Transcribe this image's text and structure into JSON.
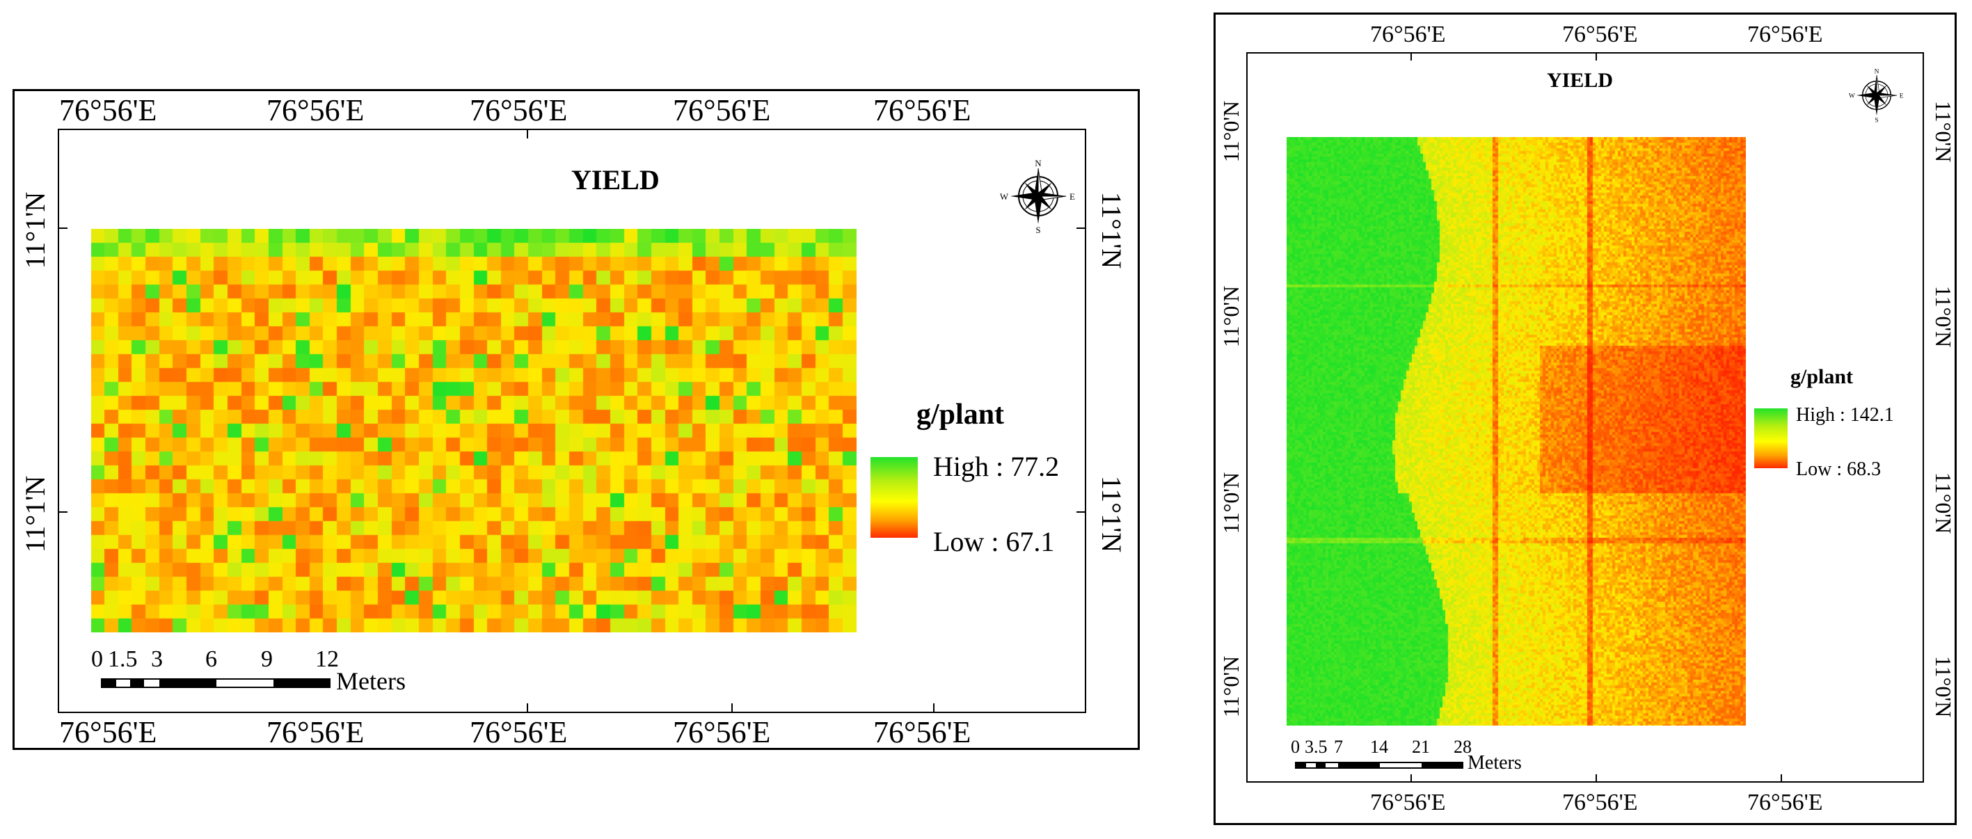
{
  "left_map": {
    "title": "YIELD",
    "top_lon_labels": [
      "76°56'E",
      "76°56'E",
      "76°56'E",
      "76°56'E",
      "76°56'E"
    ],
    "bottom_lon_labels": [
      "76°56'E",
      "76°56'E",
      "76°56'E",
      "76°56'E",
      "76°56'E"
    ],
    "left_lat_labels": [
      "11°1'N",
      "11°1'N"
    ],
    "right_lat_labels": [
      "11°1'N",
      "11°1'N"
    ],
    "legend": {
      "title": "g/plant",
      "high_label": "High : 77.2",
      "low_label": "Low : 67.1"
    },
    "scale": {
      "ticks": [
        "0",
        "1.5",
        "3",
        "6",
        "9",
        "12"
      ],
      "unit": "Meters"
    },
    "compass": {
      "n": "N",
      "s": "S",
      "e": "E",
      "w": "W"
    }
  },
  "right_map": {
    "title": "YIELD",
    "top_lon_labels": [
      "76°56'E",
      "76°56'E",
      "76°56'E"
    ],
    "bottom_lon_labels": [
      "76°56'E",
      "76°56'E",
      "76°56'E"
    ],
    "left_lat_labels": [
      "11°0'N",
      "11°0'N",
      "11°0'N",
      "11°0'N"
    ],
    "right_lat_labels": [
      "11°0'N",
      "11°0'N",
      "11°0'N",
      "11°0'N"
    ],
    "legend": {
      "title": "g/plant",
      "high_label": "High : 142.1",
      "low_label": "Low : 68.3"
    },
    "scale": {
      "ticks": [
        "0",
        "3.5",
        "7",
        "14",
        "21",
        "28"
      ],
      "unit": "Meters"
    },
    "compass": {
      "n": "N",
      "s": "S",
      "e": "E",
      "w": "W"
    }
  },
  "colors": {
    "high": "#22e22a",
    "mid": "#ffff00",
    "low": "#ff2a00"
  }
}
